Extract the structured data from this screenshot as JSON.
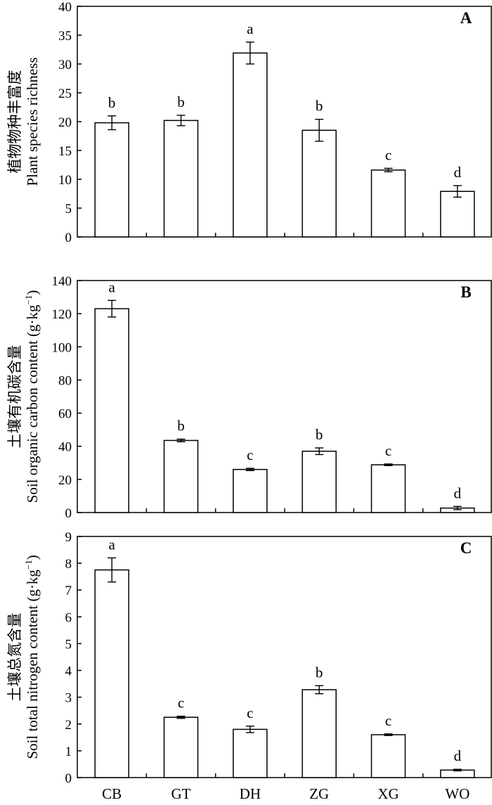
{
  "chart_data": [
    {
      "type": "bar",
      "panel_label": "A",
      "categories": [
        "CB",
        "GT",
        "DH",
        "ZG",
        "XG",
        "WO"
      ],
      "values": [
        19.8,
        20.2,
        31.9,
        18.5,
        11.6,
        7.9
      ],
      "errors": [
        1.2,
        0.9,
        1.9,
        1.9,
        0.3,
        1.0
      ],
      "significance": [
        "b",
        "b",
        "a",
        "b",
        "c",
        "d"
      ],
      "ylabel_cn": "植物物种丰富度",
      "ylabel_en": "Plant species richness",
      "ylim": [
        0,
        40
      ],
      "yticks": [
        0,
        5,
        10,
        15,
        20,
        25,
        30,
        35,
        40
      ],
      "grid": false,
      "show_xcategories": false
    },
    {
      "type": "bar",
      "panel_label": "B",
      "categories": [
        "CB",
        "GT",
        "DH",
        "ZG",
        "XG",
        "WO"
      ],
      "values": [
        123,
        43.5,
        26,
        37,
        28.8,
        2.7
      ],
      "errors": [
        5,
        0.8,
        0.7,
        2,
        0.5,
        1
      ],
      "significance": [
        "a",
        "b",
        "c",
        "b",
        "c",
        "d"
      ],
      "ylabel_cn": "土壤有机碳含量",
      "ylabel_en": "Soil organic carbon content (g·kg",
      "ylabel_unit_sup": "−1",
      "ylabel_close": ")",
      "ylim": [
        0,
        140
      ],
      "yticks": [
        0,
        20,
        40,
        60,
        80,
        100,
        120,
        140
      ],
      "grid": false,
      "show_xcategories": false
    },
    {
      "type": "bar",
      "panel_label": "C",
      "categories": [
        "CB",
        "GT",
        "DH",
        "ZG",
        "XG",
        "WO"
      ],
      "values": [
        7.75,
        2.25,
        1.8,
        3.28,
        1.6,
        0.28
      ],
      "errors": [
        0.45,
        0.04,
        0.12,
        0.15,
        0.03,
        0.03
      ],
      "significance": [
        "a",
        "c",
        "c",
        "b",
        "c",
        "d"
      ],
      "ylabel_cn": "土壤总氮含量",
      "ylabel_en": "Soil total nitrogen content (g·kg",
      "ylabel_unit_sup": "−1",
      "ylabel_close": ")",
      "ylim": [
        0,
        9
      ],
      "yticks": [
        0,
        1,
        2,
        3,
        4,
        5,
        6,
        7,
        8,
        9
      ],
      "grid": false,
      "show_xcategories": true
    }
  ],
  "style": {
    "bar_fill": "#ffffff",
    "bar_stroke": "#000000",
    "axis_color": "#000000"
  }
}
